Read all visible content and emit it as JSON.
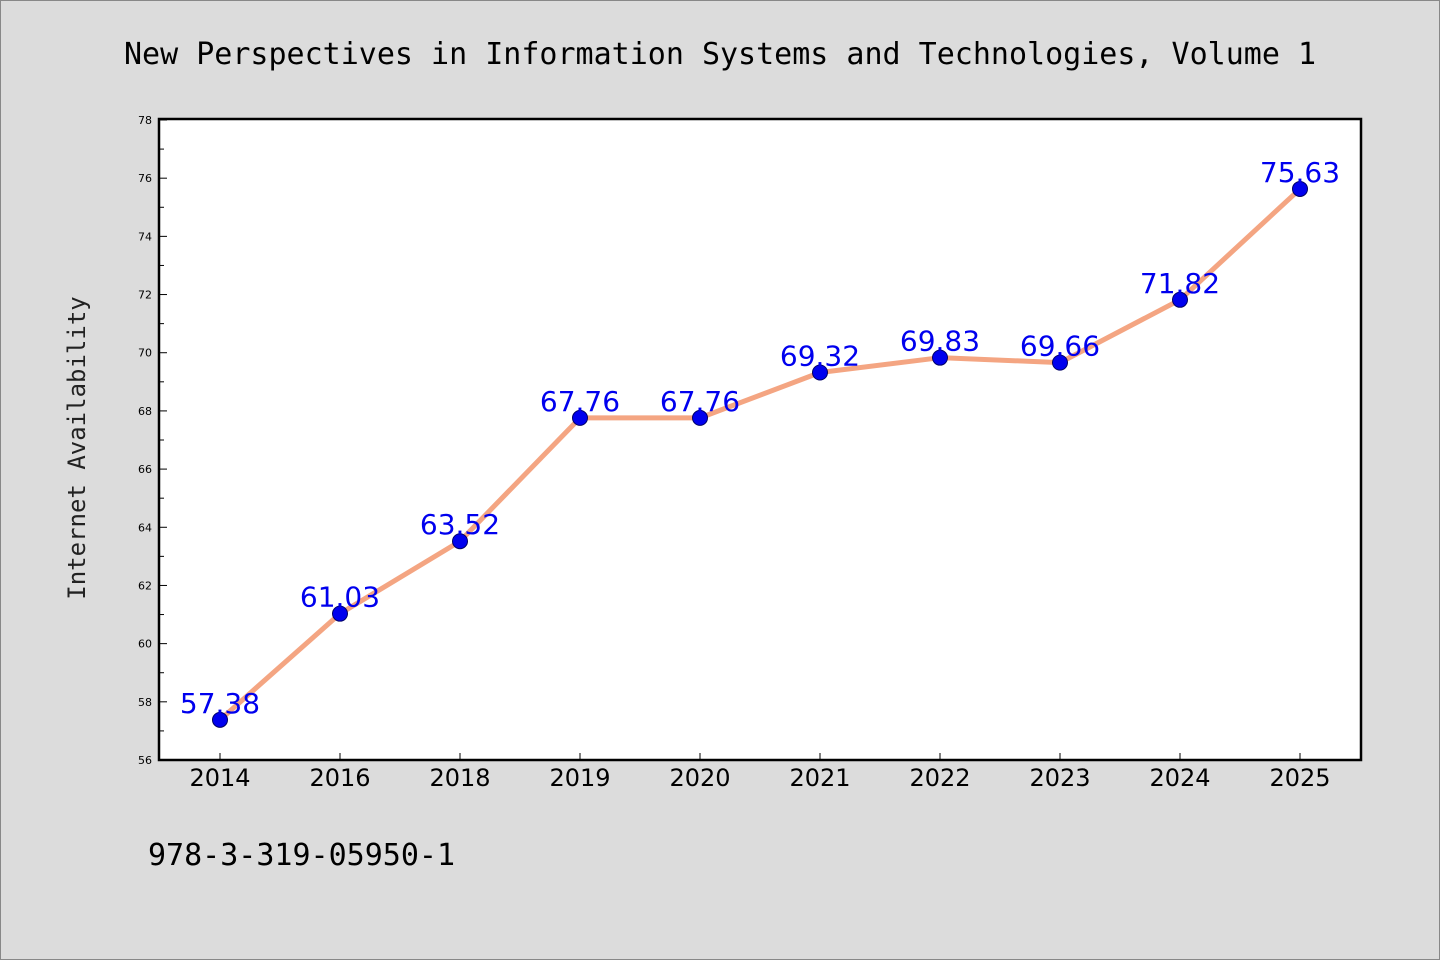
{
  "chart_data": {
    "type": "line",
    "title": "New Perspectives in Information Systems and Technologies, Volume 1",
    "xlabel": "",
    "ylabel": "Internet Availability",
    "categories": [
      "2014",
      "2016",
      "2018",
      "2019",
      "2020",
      "2021",
      "2022",
      "2023",
      "2024",
      "2025"
    ],
    "series": [
      {
        "values": [
          57.38,
          61.03,
          63.52,
          67.76,
          67.76,
          69.32,
          69.83,
          69.66,
          71.82,
          75.63
        ],
        "labels": [
          "57.38",
          "61.03",
          "63.52",
          "67.76",
          "67.76",
          "69.32",
          "69.83",
          "69.66",
          "71.82",
          "75.63"
        ]
      }
    ],
    "ylim": [
      56,
      78
    ],
    "yticks": [
      "56",
      "58",
      "60",
      "62",
      "64",
      "66",
      "68",
      "70",
      "72",
      "74",
      "76",
      "78"
    ],
    "grid": false,
    "legend": "none",
    "colors": {
      "line": "#f4a582",
      "marker": "#0000ee",
      "label": "#0000ee",
      "background": "#dcdcdc",
      "plot_background": "#ffffff"
    }
  },
  "footer": {
    "isbn": "978-3-319-05950-1"
  }
}
